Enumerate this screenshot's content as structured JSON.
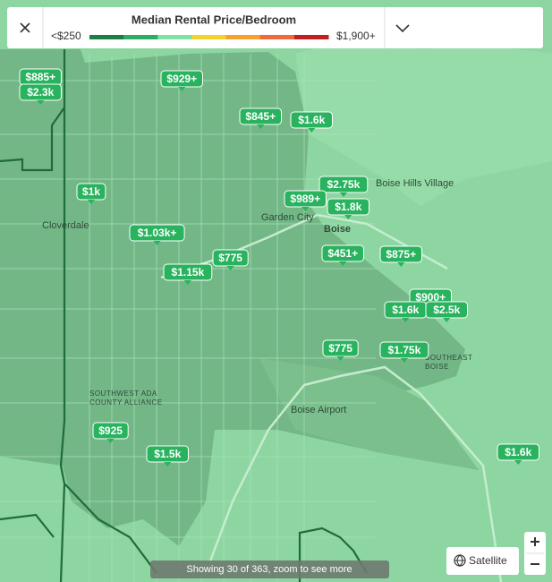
{
  "legend": {
    "title": "Median Rental Price/Bedroom",
    "low_label": "<$250",
    "high_label": "$1,900+",
    "colors": [
      "#1b7e45",
      "#2cae62",
      "#7fe3a2",
      "#f2d22b",
      "#f5a32e",
      "#ef6b3b",
      "#c41f1f"
    ]
  },
  "pins": [
    "$885+",
    "$2.3k",
    "$929+",
    "$845+",
    "$1.6k",
    "$2.75k",
    "$1k",
    "$989+",
    "$1.8k",
    "$1.03k+",
    "$451+",
    "$875+",
    "$775",
    "$1.15k",
    "$900+",
    "$1.6k",
    "$2.5k",
    "$775",
    "$1.75k",
    "$925",
    "$1.5k",
    "$1.6k"
  ],
  "places": [
    "Boise Hills Village",
    "Garden City",
    "Boise",
    "Cloverdale",
    "Boise Airport",
    "SOUTHWEST ADA COUNTY ALLIANCE",
    "SOUTHEAST BOISE"
  ],
  "status": "Showing 30 of 363, zoom to see more",
  "satellite_button": "Satellite"
}
